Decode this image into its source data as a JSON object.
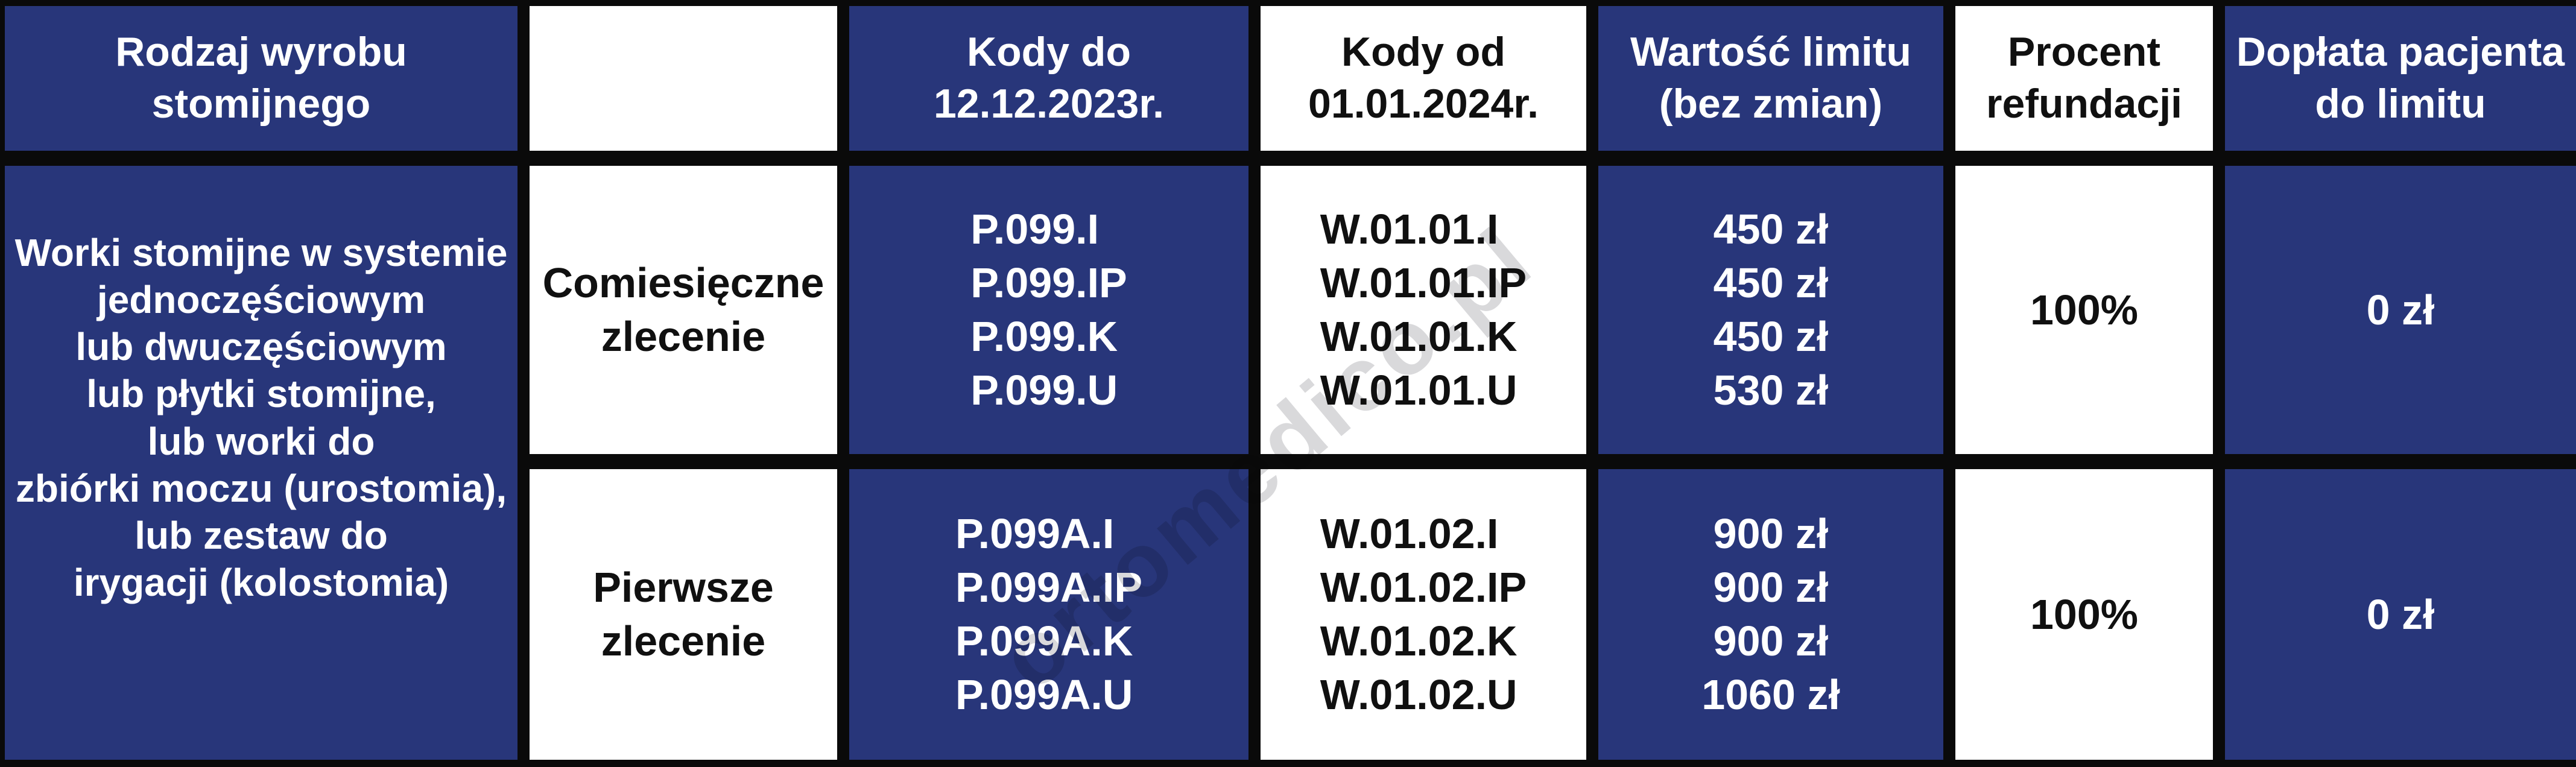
{
  "colors": {
    "cell_navy": "#28367A",
    "border_black": "#0a0a0a",
    "cell_white": "#ffffff",
    "text_dark": "#101010",
    "watermark_gray": "#9a9aa0"
  },
  "watermark": {
    "text": "ortomedico.pl"
  },
  "header": {
    "product_type": "Rodzaj wyrobu\nstomijnego",
    "order_type": "",
    "codes_until": "Kody do\n12.12.2023r.",
    "codes_from": "Kody od\n01.01.2024r.",
    "limit_value": "Wartość limitu\n(bez zmian)",
    "refund_percent": "Procent\nrefundacji",
    "patient_copay": "Dopłata pacjenta\ndo limitu"
  },
  "product": {
    "description": "Worki stomijne w systemie\njednoczęściowym\nlub dwuczęściowym\nlub płytki stomijne,\nlub worki do\nzbiórki moczu (urostomia),\nlub zestaw do\nirygacji (kolostomia)"
  },
  "rows": [
    {
      "order_type": "Comiesięczne\nzlecenie",
      "codes_old": "P.099.I\nP.099.IP\nP.099.K\nP.099.U",
      "codes_new": "W.01.01.I\nW.01.01.IP\nW.01.01.K\nW.01.01.U",
      "limit_values": "450 zł\n450 zł\n450 zł\n530 zł",
      "refund_percent": "100%",
      "patient_copay": "0 zł"
    },
    {
      "order_type": "Pierwsze\nzlecenie",
      "codes_old": "P.099A.I\nP.099A.IP\nP.099A.K\nP.099A.U",
      "codes_new": "W.01.02.I\nW.01.02.IP\nW.01.02.K\nW.01.02.U",
      "limit_values": "900 zł\n900 zł\n900 zł\n1060 zł",
      "refund_percent": "100%",
      "patient_copay": "0 zł"
    }
  ]
}
